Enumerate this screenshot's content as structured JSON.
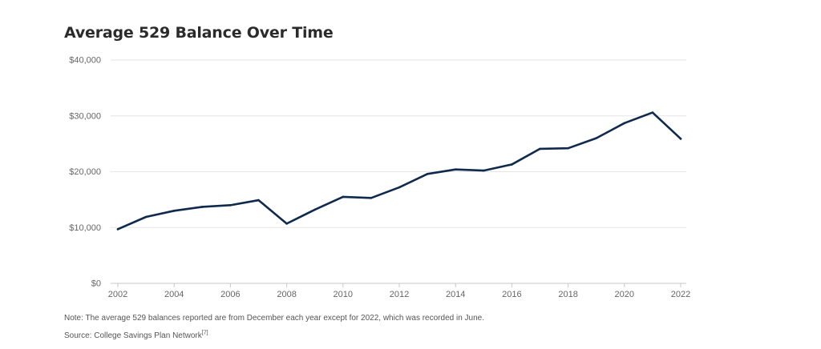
{
  "chart_data": {
    "type": "line",
    "title": "Average 529 Balance Over Time",
    "xlabel": "",
    "ylabel": "",
    "x": [
      2002,
      2003,
      2004,
      2005,
      2006,
      2007,
      2008,
      2009,
      2010,
      2011,
      2012,
      2013,
      2014,
      2015,
      2016,
      2017,
      2018,
      2019,
      2020,
      2021,
      2022
    ],
    "series": [
      {
        "values": [
          9700,
          11900,
          13000,
          13700,
          14000,
          14900,
          10700,
          13200,
          15500,
          15300,
          17200,
          19600,
          20400,
          20200,
          21300,
          24100,
          24200,
          26000,
          28700,
          30600,
          25900
        ],
        "color": "#0f2a4d"
      }
    ],
    "xticks": [
      2002,
      2004,
      2006,
      2008,
      2010,
      2012,
      2014,
      2016,
      2018,
      2020,
      2022
    ],
    "yticks": [
      0,
      10000,
      20000,
      30000,
      40000
    ],
    "ytick_labels": [
      "$0",
      "$10,000",
      "$20,000",
      "$30,000",
      "$40,000"
    ],
    "xlim": [
      2002,
      2022
    ],
    "ylim": [
      0,
      40000
    ],
    "grid": "horizontal",
    "legend": "none"
  },
  "footer": {
    "note": "Note: The average 529 balances reported are from December each year except for 2022, which was recorded in June.",
    "source": "Source: College Savings Plan Network",
    "source_ref": "[7]"
  }
}
